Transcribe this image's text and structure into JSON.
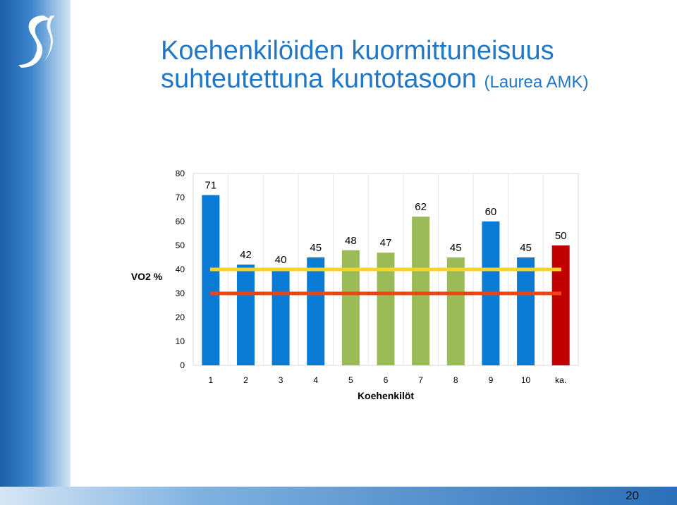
{
  "slide": {
    "title_line1": "Koehenkilöiden kuormittuneisuus",
    "title_line2": "suhteutettuna kuntotasoon",
    "title_source": "(Laurea AMK)",
    "page_number": "20"
  },
  "colors": {
    "title": "#2176c5",
    "blue_bar": "#0a7bd4",
    "green_bar": "#9bbb59",
    "red_bar": "#c00000",
    "yellow_line": "#f5d328",
    "orange_line": "#ee4411"
  },
  "chart_data": {
    "type": "bar",
    "categories": [
      "1",
      "2",
      "3",
      "4",
      "5",
      "6",
      "7",
      "8",
      "9",
      "10",
      "ka."
    ],
    "values": [
      71,
      42,
      40,
      45,
      48,
      47,
      62,
      45,
      60,
      45,
      50
    ],
    "bar_colors": [
      "blue",
      "blue",
      "blue",
      "blue",
      "green",
      "green",
      "green",
      "green",
      "blue",
      "blue",
      "red"
    ],
    "reference_lines": [
      {
        "value": 40,
        "color": "yellow"
      },
      {
        "value": 30,
        "color": "orange"
      }
    ],
    "xlabel": "Koehenkilöt",
    "ylabel": "VO2 %",
    "ylim": [
      0,
      80
    ],
    "yticks": [
      0,
      10,
      20,
      30,
      40,
      50,
      60,
      70,
      80
    ],
    "grid": true
  }
}
